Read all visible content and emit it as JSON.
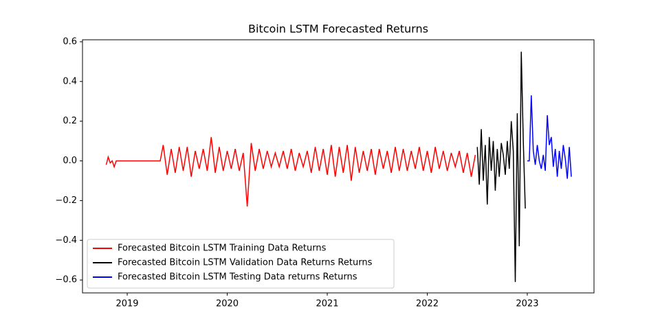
{
  "chart_data": {
    "type": "line",
    "title": "Bitcoin LSTM Forecasted Returns",
    "xlim": [
      2018.553,
      2023.667
    ],
    "xticks": [
      2019,
      2020,
      2021,
      2022,
      2023
    ],
    "ylim": [
      -0.665,
      0.61
    ],
    "yticks": [
      {
        "value": -0.6,
        "label": "−0.6"
      },
      {
        "value": -0.4,
        "label": "−0.4"
      },
      {
        "value": -0.2,
        "label": "−0.2"
      },
      {
        "value": 0.0,
        "label": "0.0"
      },
      0.2,
      0.4,
      0.6
    ],
    "legend": "lower left",
    "series": [
      {
        "name": "Forecasted Bitcoin LSTM Training Data Returns",
        "color": "#ff0000",
        "x": [
          2018.79,
          2018.81,
          2018.83,
          2018.85,
          2018.87,
          2018.89,
          2019.0,
          2019.2,
          2019.33,
          2019.36,
          2019.4,
          2019.44,
          2019.48,
          2019.52,
          2019.56,
          2019.6,
          2019.64,
          2019.68,
          2019.72,
          2019.76,
          2019.8,
          2019.84,
          2019.88,
          2019.92,
          2019.96,
          2020.0,
          2020.04,
          2020.08,
          2020.12,
          2020.16,
          2020.2,
          2020.24,
          2020.28,
          2020.32,
          2020.36,
          2020.4,
          2020.44,
          2020.48,
          2020.52,
          2020.56,
          2020.6,
          2020.64,
          2020.68,
          2020.72,
          2020.76,
          2020.8,
          2020.84,
          2020.88,
          2020.92,
          2020.96,
          2021.0,
          2021.04,
          2021.08,
          2021.12,
          2021.16,
          2021.2,
          2021.24,
          2021.28,
          2021.32,
          2021.36,
          2021.4,
          2021.44,
          2021.48,
          2021.52,
          2021.56,
          2021.6,
          2021.64,
          2021.68,
          2021.72,
          2021.76,
          2021.8,
          2021.84,
          2021.88,
          2021.92,
          2021.96,
          2022.0,
          2022.04,
          2022.08,
          2022.12,
          2022.16,
          2022.2,
          2022.24,
          2022.28,
          2022.32,
          2022.36,
          2022.4,
          2022.44,
          2022.48
        ],
        "values": [
          -0.02,
          0.02,
          -0.01,
          0.0,
          -0.03,
          0.0,
          0.0,
          0.0,
          0.0,
          0.08,
          -0.07,
          0.06,
          -0.06,
          0.07,
          -0.05,
          0.07,
          -0.08,
          0.05,
          -0.04,
          0.06,
          -0.05,
          0.12,
          -0.06,
          0.07,
          -0.05,
          0.05,
          -0.04,
          0.06,
          -0.05,
          0.04,
          -0.23,
          0.09,
          -0.05,
          0.06,
          -0.04,
          0.05,
          -0.03,
          0.04,
          -0.03,
          0.05,
          -0.04,
          0.06,
          -0.05,
          0.04,
          -0.03,
          0.05,
          -0.06,
          0.07,
          -0.05,
          0.06,
          -0.07,
          0.08,
          -0.08,
          0.07,
          -0.06,
          0.08,
          -0.1,
          0.07,
          -0.06,
          0.05,
          -0.05,
          0.06,
          -0.07,
          0.06,
          -0.04,
          0.05,
          -0.06,
          0.07,
          -0.05,
          0.06,
          -0.05,
          0.05,
          -0.04,
          0.07,
          -0.05,
          0.05,
          -0.06,
          0.07,
          -0.04,
          0.05,
          -0.05,
          0.04,
          -0.03,
          0.05,
          -0.06,
          0.04,
          -0.08,
          0.03
        ]
      },
      {
        "name": "Forecasted Bitcoin LSTM Validation Data Returns Returns",
        "color": "#000000",
        "x": [
          2022.5,
          2022.52,
          2022.54,
          2022.56,
          2022.58,
          2022.6,
          2022.62,
          2022.64,
          2022.66,
          2022.68,
          2022.7,
          2022.72,
          2022.74,
          2022.76,
          2022.78,
          2022.8,
          2022.82,
          2022.84,
          2022.86,
          2022.88,
          2022.9,
          2022.92,
          2022.94,
          2022.96,
          2022.98
        ],
        "values": [
          0.07,
          -0.12,
          0.16,
          -0.1,
          0.08,
          -0.22,
          0.12,
          -0.05,
          0.1,
          -0.15,
          0.06,
          -0.08,
          0.09,
          0.03,
          -0.07,
          0.1,
          -0.04,
          0.2,
          0.05,
          -0.61,
          0.24,
          -0.43,
          0.55,
          0.1,
          -0.24
        ]
      },
      {
        "name": "Forecasted Bitcoin LSTM Testing Data returns Returns",
        "color": "#0000ff",
        "x": [
          2023.0,
          2023.02,
          2023.04,
          2023.06,
          2023.08,
          2023.1,
          2023.12,
          2023.14,
          2023.16,
          2023.18,
          2023.2,
          2023.22,
          2023.24,
          2023.26,
          2023.28,
          2023.3,
          2023.32,
          2023.34,
          2023.36,
          2023.38,
          2023.4,
          2023.42,
          2023.44
        ],
        "values": [
          0.0,
          0.0,
          0.33,
          0.05,
          -0.02,
          0.08,
          0.0,
          -0.04,
          0.03,
          -0.05,
          0.23,
          0.08,
          0.12,
          -0.03,
          0.06,
          -0.08,
          0.05,
          -0.04,
          0.08,
          0.01,
          -0.09,
          0.07,
          -0.08
        ]
      }
    ]
  }
}
